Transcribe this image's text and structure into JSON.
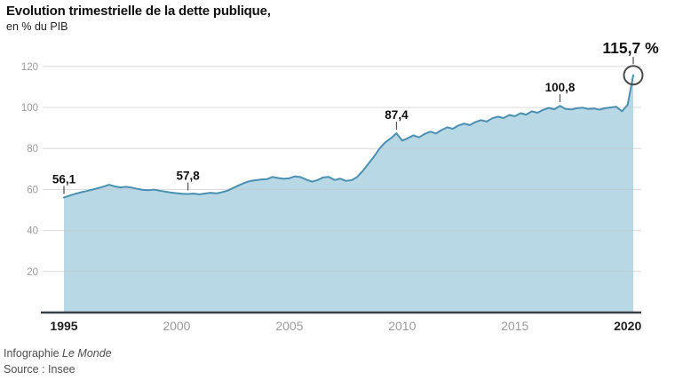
{
  "header": {
    "title": "Evolution trimestrielle de la dette publique,",
    "subtitle": "en % du PIB"
  },
  "footer": {
    "credit_prefix": "Infographie ",
    "credit_name": "Le Monde",
    "source": "Source : Insee"
  },
  "colors": {
    "area_fill": "#b9d8e6",
    "line": "#4a90b2",
    "grid": "#c4c4c4",
    "baseline": "#3a3f44",
    "axis_text_muted": "#9b9b9b",
    "axis_text_dark": "#1f1f1f",
    "annotation_text": "#111111",
    "annotation_tick": "#5a5a5a",
    "circle_stroke": "#4a4a4a"
  },
  "chart_data": {
    "type": "area",
    "title": "Evolution trimestrielle de la dette publique, en % du PIB",
    "frequency": "quarterly",
    "x_start_year": 1995,
    "values": [
      56.1,
      57.0,
      57.9,
      58.6,
      59.2,
      59.9,
      60.6,
      61.4,
      62.3,
      61.5,
      61.0,
      61.3,
      60.9,
      60.3,
      59.8,
      59.6,
      59.9,
      59.4,
      58.9,
      58.5,
      58.2,
      57.9,
      57.8,
      58.0,
      57.6,
      58.0,
      58.4,
      58.1,
      58.6,
      59.4,
      60.7,
      62.0,
      63.2,
      64.1,
      64.5,
      64.9,
      65.0,
      66.1,
      65.6,
      65.2,
      65.5,
      66.4,
      66.0,
      64.8,
      63.8,
      64.6,
      65.9,
      66.1,
      64.6,
      65.3,
      64.2,
      64.5,
      66.0,
      69.0,
      72.5,
      76.0,
      80.0,
      83.0,
      85.0,
      87.4,
      83.8,
      85.0,
      86.4,
      85.4,
      87.1,
      88.2,
      87.3,
      89.0,
      90.3,
      89.6,
      91.2,
      92.1,
      91.4,
      92.9,
      93.8,
      93.1,
      94.7,
      95.5,
      94.8,
      96.3,
      95.7,
      97.2,
      96.5,
      98.1,
      97.4,
      98.8,
      99.8,
      99.1,
      100.8,
      99.2,
      99.0,
      99.6,
      99.9,
      99.2,
      99.5,
      98.9,
      99.6,
      100.0,
      100.3,
      98.1,
      101.3,
      115.7
    ],
    "x_tick_years": [
      1995,
      2000,
      2005,
      2010,
      2015,
      2020
    ],
    "x_tick_emphasis": [
      1995,
      2020
    ],
    "y_ticks": [
      20,
      40,
      60,
      80,
      100,
      120
    ],
    "ylim": [
      0,
      125
    ],
    "grid": true,
    "legend": null,
    "annotations": [
      {
        "text": "56,1",
        "index": 0,
        "circled": false
      },
      {
        "text": "57,8",
        "index": 22,
        "circled": false
      },
      {
        "text": "87,4",
        "index": 59,
        "circled": false
      },
      {
        "text": "100,8",
        "index": 88,
        "circled": false
      },
      {
        "text": "115,7 %",
        "index": 101,
        "circled": true
      }
    ]
  }
}
